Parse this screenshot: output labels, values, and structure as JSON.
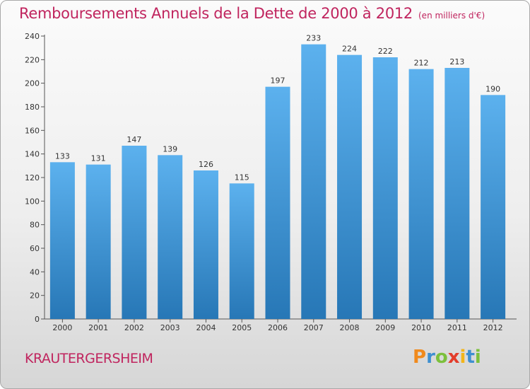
{
  "title": "Remboursements Annuels de la Dette de 2000 à 2012",
  "unit": "(en milliers d'€)",
  "commune": "KRAUTERGERSHEIM",
  "logo": {
    "letters": [
      "P",
      "r",
      "o",
      "x",
      "i",
      "t",
      "i"
    ],
    "colors": [
      "#f08a1c",
      "#3e8fd0",
      "#7cc03c",
      "#e33d2b",
      "#f2b51a",
      "#3e8fd0",
      "#7cc03c"
    ]
  },
  "colors": {
    "bar_top": "#5cb1ee",
    "bar_bottom": "#2777b6",
    "title": "#c0245e"
  },
  "chart_data": {
    "type": "bar",
    "categories": [
      "2000",
      "2001",
      "2002",
      "2003",
      "2004",
      "2005",
      "2006",
      "2007",
      "2008",
      "2009",
      "2010",
      "2011",
      "2012"
    ],
    "values": [
      133,
      131,
      147,
      139,
      126,
      115,
      197,
      233,
      224,
      222,
      212,
      213,
      190
    ],
    "yticks": [
      0,
      20,
      40,
      60,
      80,
      100,
      120,
      140,
      160,
      180,
      200,
      220,
      240
    ],
    "ylim": [
      0,
      240
    ],
    "grid": false,
    "legend": "none"
  }
}
